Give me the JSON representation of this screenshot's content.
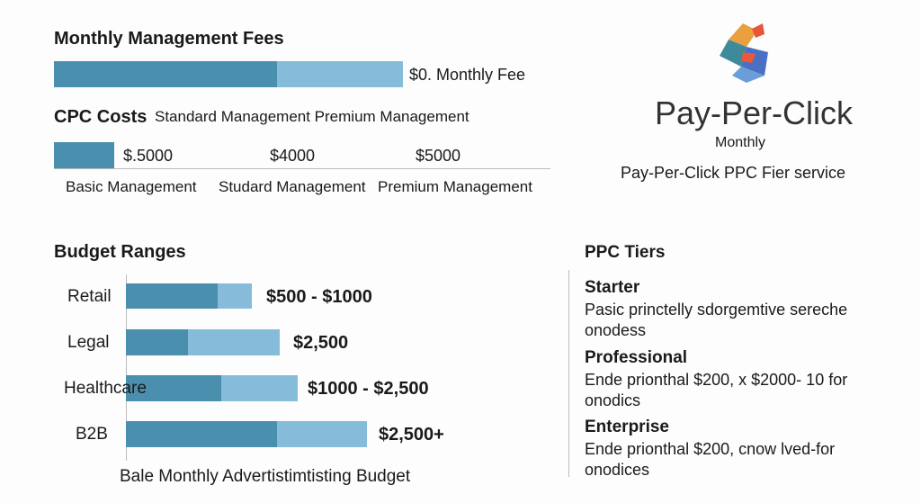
{
  "fees": {
    "title": "Monthly Management Fees",
    "label": "$0. Monthly Fee"
  },
  "cpc": {
    "title": "CPC Costs",
    "subtitle": "Standard Management Premium Management",
    "prices": [
      "$.5000",
      "$4000",
      "$5000"
    ],
    "tiers": [
      "Basic Management",
      "Studard Management",
      "Premium Management"
    ]
  },
  "brand": {
    "title": "Pay-Per-Click",
    "subtitle": "Monthly",
    "tagline": "Pay-Per-Click PPC Fier service"
  },
  "budget": {
    "title": "Budget Ranges",
    "rows": [
      [
        "Retail",
        "$500 - $1000"
      ],
      [
        "Legal",
        "$2,500"
      ],
      [
        "Healthcare",
        "$1000 - $2,500"
      ],
      [
        "B2B",
        "$2,500+"
      ]
    ],
    "axis_label": "Bale Monthly Advertistimtisting Budget"
  },
  "tiers": {
    "title": "PPC Tiers",
    "items": [
      {
        "name": "Starter",
        "lines": [
          "Pasic princtelly sdorgemtive sereche",
          "onodess"
        ]
      },
      {
        "name": "Professional",
        "lines": [
          "Ende prionthal $200, x $2000- 10 for",
          "onodics"
        ]
      },
      {
        "name": "Enterprise",
        "lines": [
          "Ende prionthal $200, cnow lved-for",
          "onodices"
        ]
      }
    ]
  }
}
